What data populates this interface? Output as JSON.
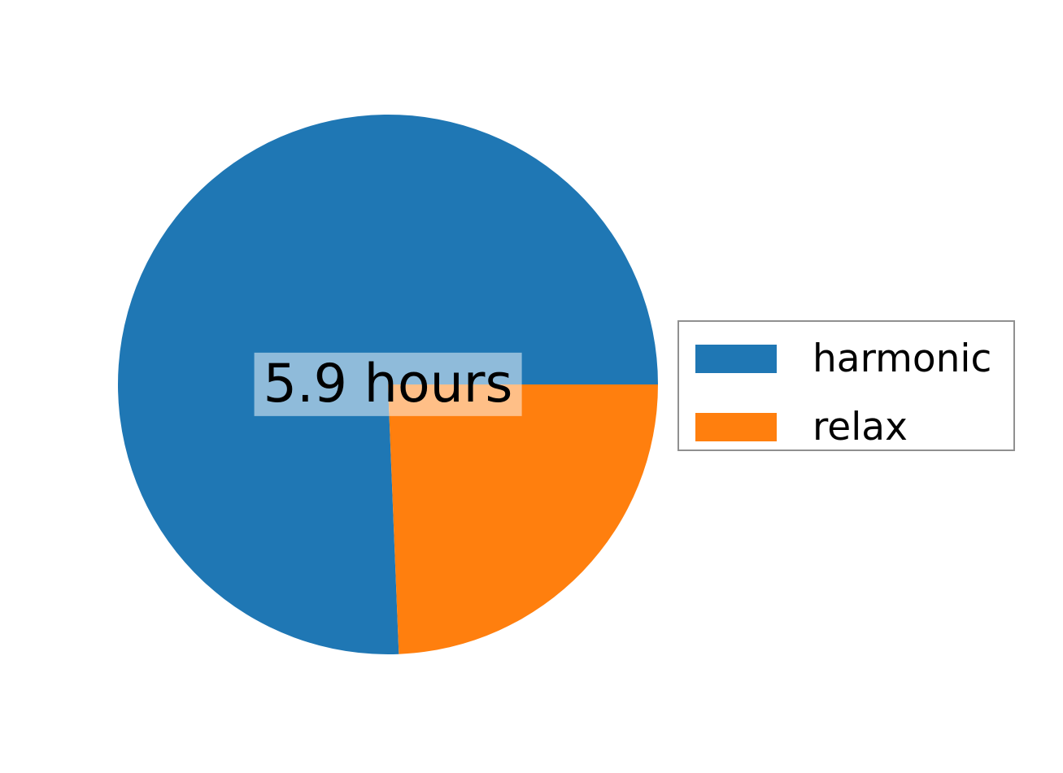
{
  "chart_data": {
    "type": "pie",
    "labels": [
      "harmonic",
      "relax"
    ],
    "values_hours": [
      5.9,
      1.9
    ],
    "fractions": [
      0.756,
      0.244
    ],
    "colors": [
      "#1f77b4",
      "#ff7f0e"
    ],
    "start_angle_deg": 0,
    "direction": "counterclockwise",
    "center_label": "5.9 hours",
    "center_label_box_color": "rgba(255,255,255,0.5)",
    "background": "#ffffff",
    "legend": {
      "position": "right",
      "entries": [
        "harmonic",
        "relax"
      ],
      "border_color": "#909090"
    }
  }
}
